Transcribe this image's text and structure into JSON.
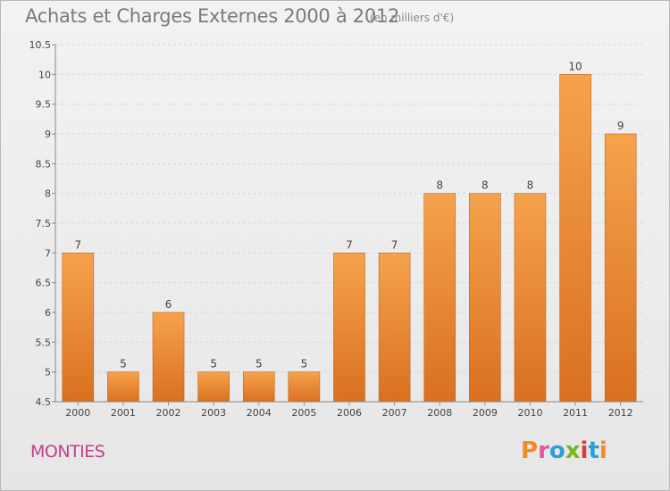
{
  "header": {
    "title": "Achats et Charges Externes 2000 à 2012",
    "subtitle": "(en milliers d'€)"
  },
  "footer": {
    "commune": "MONTIES",
    "logo_text": "Proxiti",
    "logo_colors": [
      "#f08a24",
      "#e05a9a",
      "#2c9fd8",
      "#7ab51d",
      "#e03a3a",
      "#2c9fd8",
      "#f08a24"
    ]
  },
  "colors": {
    "bar_top": "#f6a24c",
    "bar_bottom": "#d97020",
    "bar_edge": "#c46418",
    "axis": "#888888",
    "grid": "#d6d6d6"
  },
  "chart_data": {
    "type": "bar",
    "categories": [
      "2000",
      "2001",
      "2002",
      "2003",
      "2004",
      "2005",
      "2006",
      "2007",
      "2008",
      "2009",
      "2010",
      "2011",
      "2012"
    ],
    "values": [
      7,
      5,
      6,
      5,
      5,
      5,
      7,
      7,
      8,
      8,
      8,
      10,
      9
    ],
    "data_labels": [
      "7",
      "5",
      "6",
      "5",
      "5",
      "5",
      "7",
      "7",
      "8",
      "8",
      "8",
      "10",
      "9"
    ],
    "ylim": [
      4.5,
      10.5
    ],
    "yticks": [
      4.5,
      5,
      5.5,
      6,
      6.5,
      7,
      7.5,
      8,
      8.5,
      9,
      9.5,
      10,
      10.5
    ],
    "ytick_labels": [
      "4.5",
      "5",
      "5.5",
      "6",
      "6.5",
      "7",
      "7.5",
      "8",
      "8.5",
      "9",
      "9.5",
      "10",
      "10.5"
    ],
    "grid": true
  }
}
